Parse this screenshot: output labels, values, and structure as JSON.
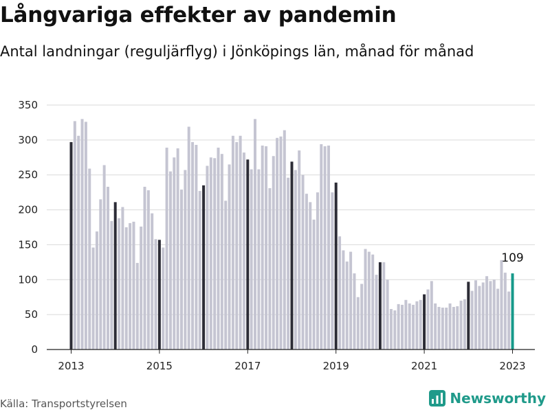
{
  "title": "Långvariga effekter av pandemin",
  "subtitle": "Antal landningar (reguljärflyg) i Jönköpings län, månad för månad",
  "source": "Källa: Transportstyrelsen",
  "brand": "Newsworthy",
  "colors": {
    "bar": "#c5c5d2",
    "january": "#2c2c36",
    "latest": "#16998a",
    "grid": "#d9d9d9",
    "brand": "#1f9a8a"
  },
  "chart_data": {
    "type": "bar",
    "title": "Långvariga effekter av pandemin",
    "subtitle": "Antal landningar (reguljärflyg) i Jönköpings län, månad för månad",
    "xlabel": "",
    "ylabel": "",
    "ylim": [
      0,
      350
    ],
    "yticks": [
      0,
      50,
      100,
      150,
      200,
      250,
      300,
      350
    ],
    "xticks": [
      "2013",
      "2015",
      "2017",
      "2019",
      "2021",
      "2023"
    ],
    "start": "2013-01",
    "end": "2023-01",
    "grid": true,
    "highlight": "January of each year in dark, latest month in teal",
    "annotation": {
      "month": "2023-01",
      "label": "109"
    },
    "values": [
      297,
      327,
      306,
      330,
      326,
      259,
      146,
      169,
      215,
      264,
      233,
      184,
      211,
      188,
      204,
      175,
      181,
      183,
      124,
      176,
      233,
      228,
      195,
      158,
      157,
      146,
      289,
      255,
      275,
      288,
      229,
      257,
      319,
      297,
      293,
      227,
      235,
      263,
      275,
      274,
      289,
      280,
      213,
      265,
      306,
      297,
      306,
      282,
      272,
      258,
      330,
      258,
      292,
      291,
      231,
      277,
      303,
      305,
      314,
      246,
      269,
      257,
      285,
      250,
      223,
      211,
      186,
      225,
      294,
      291,
      292,
      225,
      239,
      162,
      142,
      126,
      140,
      109,
      75,
      94,
      144,
      140,
      136,
      107,
      125,
      125,
      100,
      58,
      56,
      65,
      64,
      71,
      66,
      64,
      69,
      71,
      79,
      86,
      98,
      66,
      61,
      60,
      60,
      66,
      61,
      62,
      70,
      72,
      97,
      84,
      99,
      91,
      96,
      105,
      98,
      100,
      87,
      128,
      110,
      83,
      109
    ]
  }
}
